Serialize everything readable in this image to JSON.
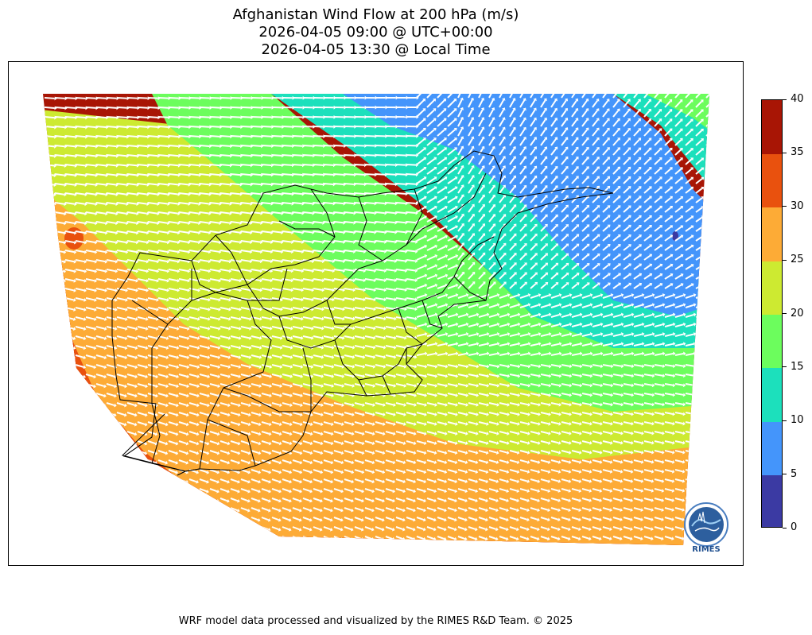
{
  "title_lines": [
    "Afghanistan Wind Flow at 200 hPa (m/s)",
    "2026-04-05 09:00 @ UTC+00:00",
    "2026-04-05 13:30 @ Local Time"
  ],
  "colorbar": {
    "unit": "m/s",
    "levels": [
      "0",
      "5",
      "10",
      "15",
      "20",
      "25",
      "30",
      "35",
      "40"
    ],
    "colors": [
      "#3b3aa3",
      "#4495fb",
      "#1ce0bc",
      "#6cfd5d",
      "#cdea31",
      "#fdab36",
      "#e9510e",
      "#a81505"
    ]
  },
  "logo": {
    "text": "RIMES"
  },
  "footer": "WRF model data processed and visualized by the RIMES R&D Team. © 2025"
}
